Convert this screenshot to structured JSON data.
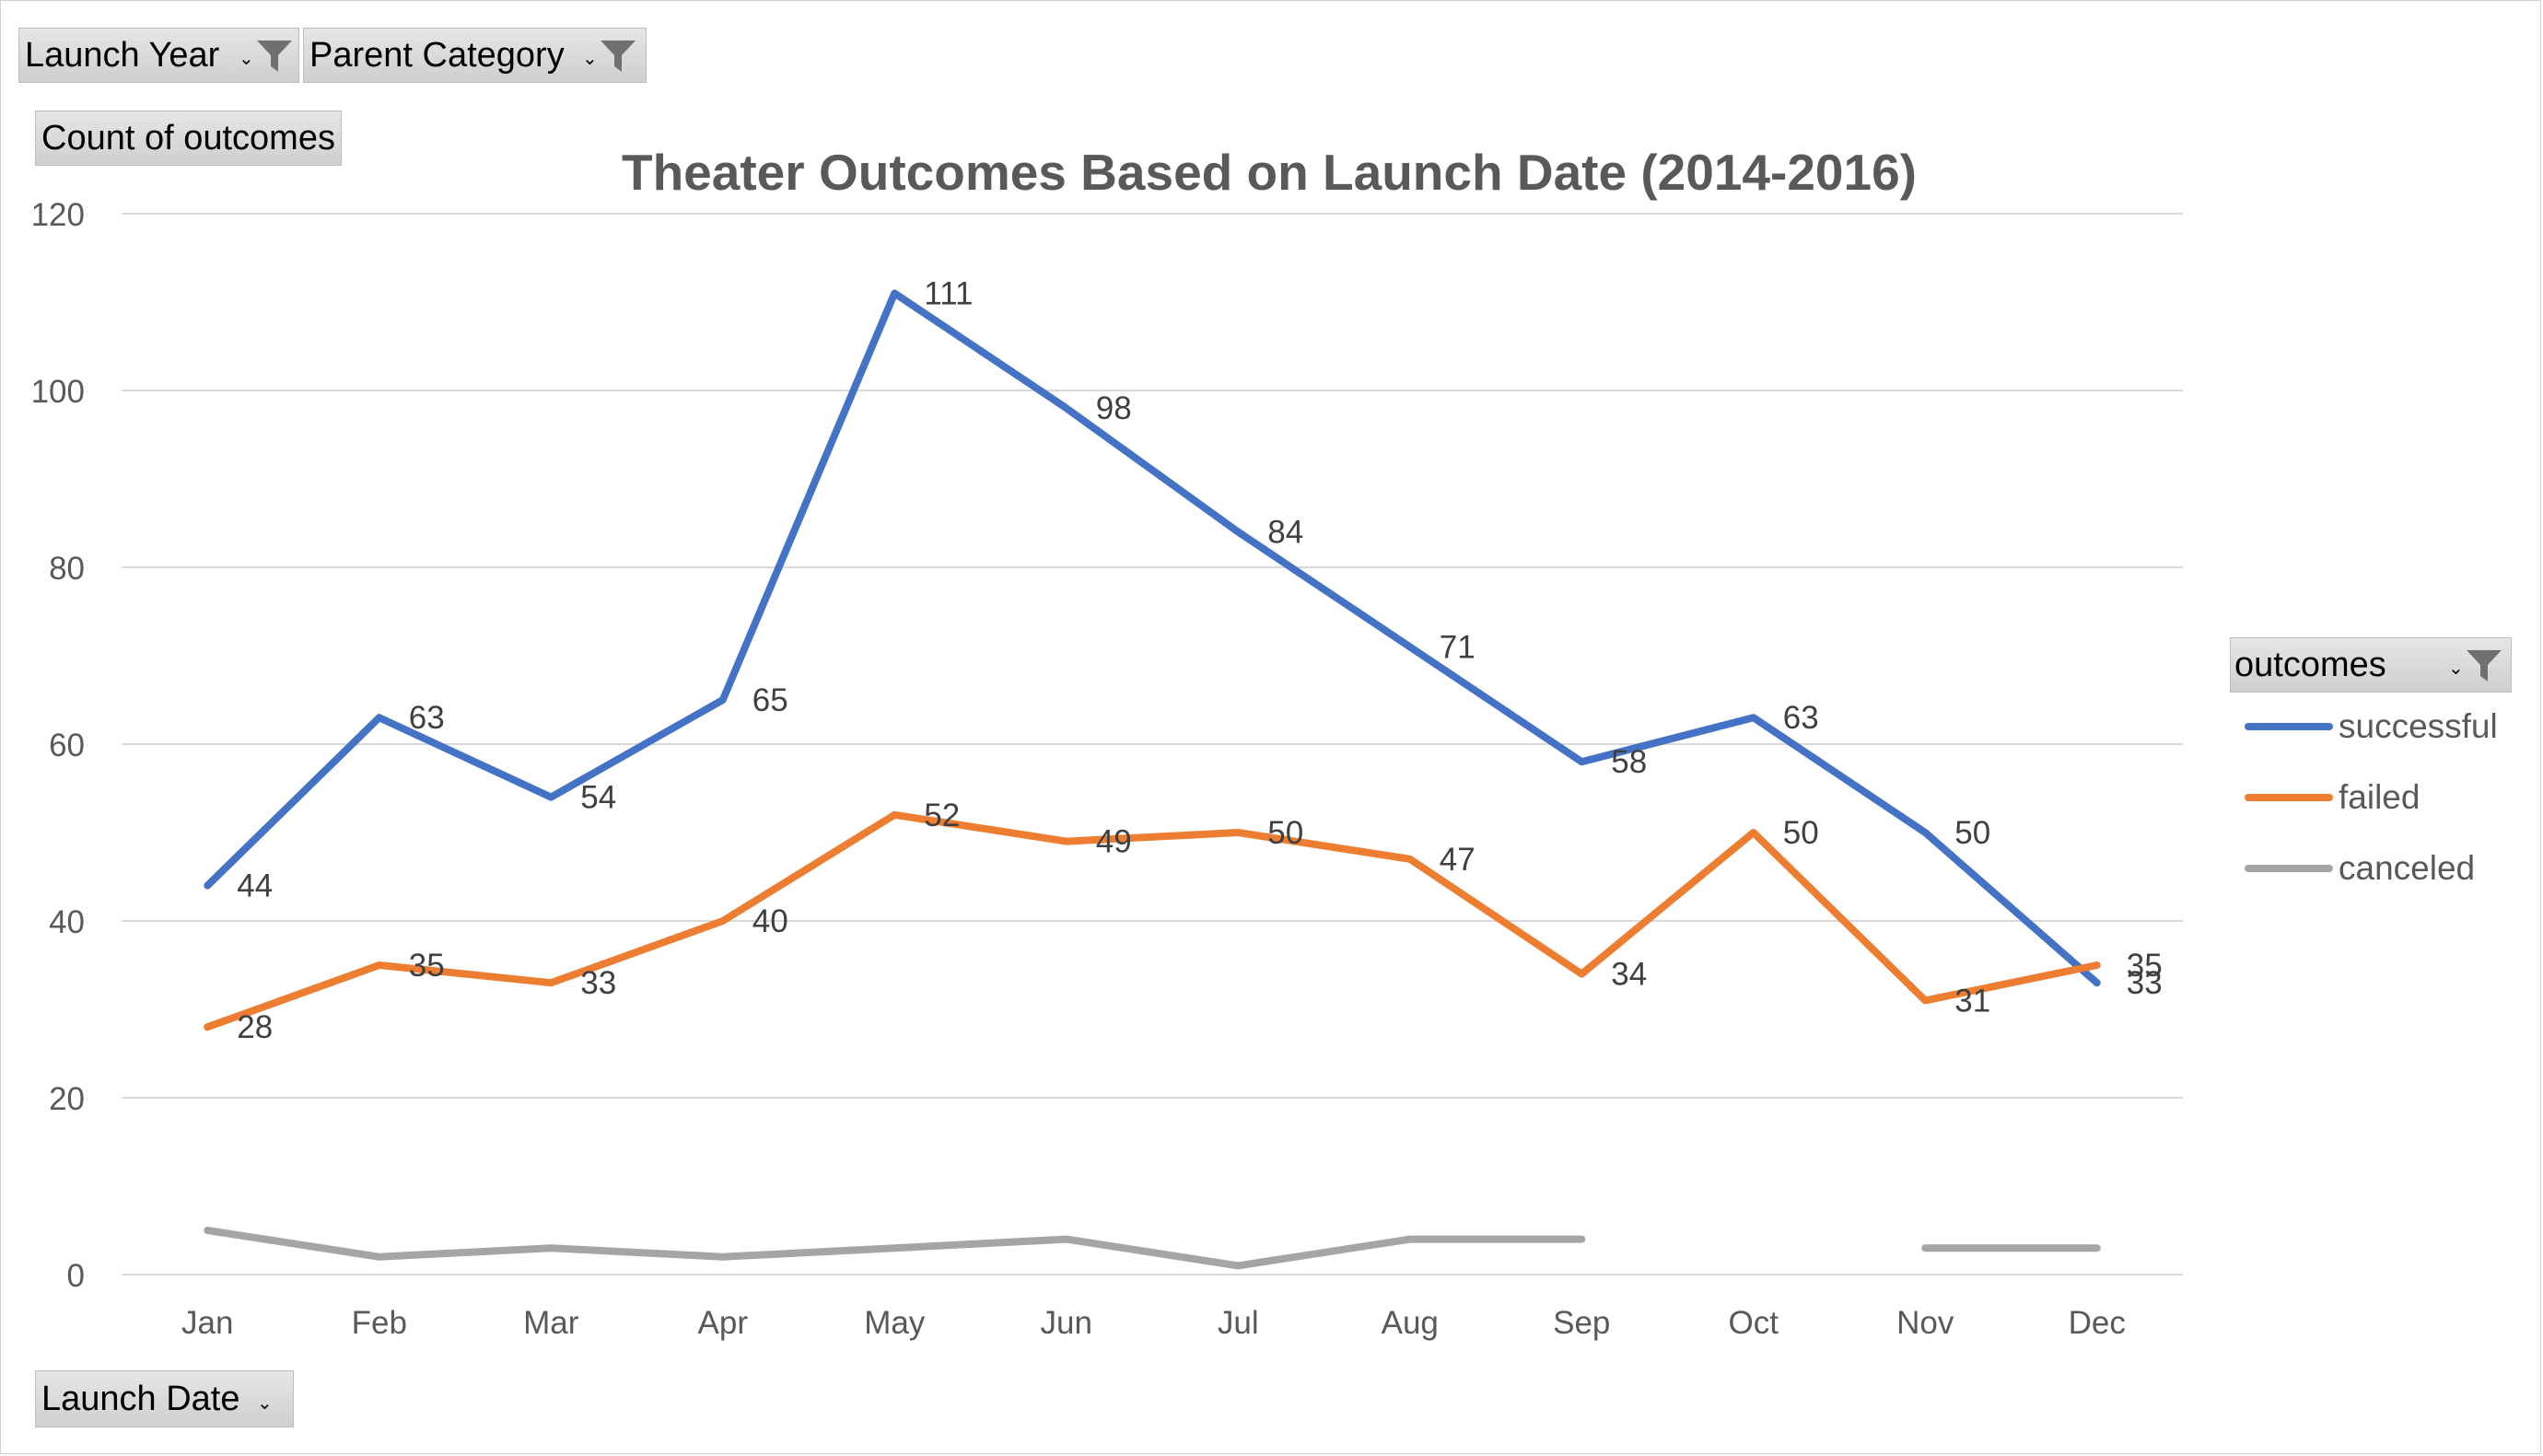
{
  "filters": {
    "launch_year": "Launch Year",
    "parent_category": "Parent Category",
    "values_field": "Count of outcomes",
    "axis_field": "Launch Date",
    "legend_field": "outcomes"
  },
  "chart_data": {
    "type": "line",
    "title": "Theater Outcomes Based on Launch Date (2014-2016)",
    "xlabel": "",
    "ylabel": "",
    "categories": [
      "Jan",
      "Feb",
      "Mar",
      "Apr",
      "May",
      "Jun",
      "Jul",
      "Aug",
      "Sep",
      "Oct",
      "Nov",
      "Dec"
    ],
    "ylim": [
      0,
      120
    ],
    "yticks": [
      0,
      20,
      40,
      60,
      80,
      100,
      120
    ],
    "grid": true,
    "legend_position": "right",
    "series": [
      {
        "name": "successful",
        "color": "#4472C4",
        "values": [
          44,
          63,
          54,
          65,
          111,
          98,
          84,
          71,
          58,
          63,
          50,
          33
        ],
        "data_labels": true
      },
      {
        "name": "failed",
        "color": "#ED7D31",
        "values": [
          28,
          35,
          33,
          40,
          52,
          49,
          50,
          47,
          34,
          50,
          31,
          35
        ],
        "data_labels": true
      },
      {
        "name": "canceled",
        "color": "#A5A5A5",
        "values": [
          5,
          2,
          3,
          2,
          3,
          4,
          1,
          4,
          4,
          null,
          3,
          3
        ],
        "data_labels": false
      }
    ]
  }
}
